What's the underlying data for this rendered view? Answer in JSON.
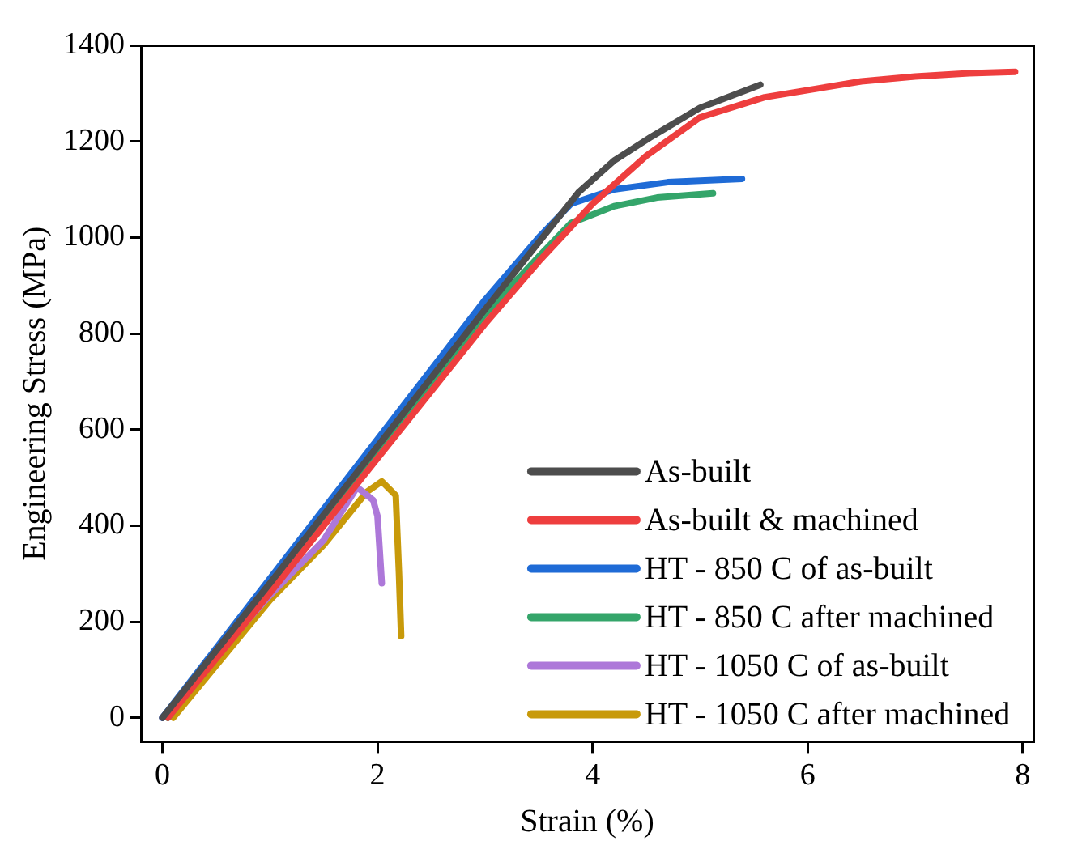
{
  "chart_data": {
    "type": "line",
    "xlabel": "Strain (%)",
    "ylabel": "Engineering Stress (MPa)",
    "xlim": [
      -0.2,
      8.1
    ],
    "xticks": [
      0,
      2,
      4,
      6,
      8
    ],
    "ylim": [
      -50,
      1400
    ],
    "yticks": [
      0,
      200,
      400,
      600,
      800,
      1000,
      1200,
      1400
    ],
    "grid": false,
    "legend": "bottom right",
    "marker": "none",
    "line_style": "solid",
    "series": [
      {
        "name": "As-built",
        "color": "#4d4d4d",
        "x": [
          0,
          1,
          2,
          3,
          3.5,
          3.87,
          4.2,
          4.55,
          5,
          5.56
        ],
        "values": [
          0,
          280,
          565,
          850,
          990,
          1094,
          1160,
          1210,
          1270,
          1318
        ]
      },
      {
        "name": "As-built & machined",
        "color": "#ee3e3e",
        "x": [
          0.05,
          1,
          2,
          3,
          3.5,
          4,
          4.5,
          5,
          5.6,
          6.5,
          7,
          7.5,
          7.93
        ],
        "values": [
          0,
          260,
          540,
          820,
          950,
          1070,
          1170,
          1250,
          1292,
          1325,
          1335,
          1342,
          1345
        ]
      },
      {
        "name": "HT - 850 C of as-built",
        "color": "#1f6bd6",
        "x": [
          0,
          1,
          2,
          3,
          3.5,
          3.8,
          4.2,
          4.7,
          5.39
        ],
        "values": [
          0,
          290,
          580,
          870,
          1000,
          1070,
          1100,
          1115,
          1122
        ]
      },
      {
        "name": "HT - 850 C after machined",
        "color": "#34a56a",
        "x": [
          0.05,
          1,
          2,
          3,
          3.5,
          3.8,
          4.2,
          4.6,
          5.12
        ],
        "values": [
          0,
          275,
          560,
          840,
          960,
          1030,
          1065,
          1083,
          1092
        ]
      },
      {
        "name": "HT - 1050 C of as-built",
        "color": "#ad78d9",
        "x": [
          0,
          0.5,
          1,
          1.5,
          1.81,
          1.96,
          2,
          2.04
        ],
        "values": [
          0,
          130,
          255,
          370,
          480,
          453,
          420,
          280
        ]
      },
      {
        "name": "HT - 1050 C after machined",
        "color": "#c89a0a",
        "x": [
          0.1,
          1,
          1.5,
          1.9,
          2.04,
          2.17,
          2.2,
          2.22
        ],
        "values": [
          0,
          245,
          360,
          470,
          492,
          463,
          300,
          170
        ]
      }
    ]
  }
}
